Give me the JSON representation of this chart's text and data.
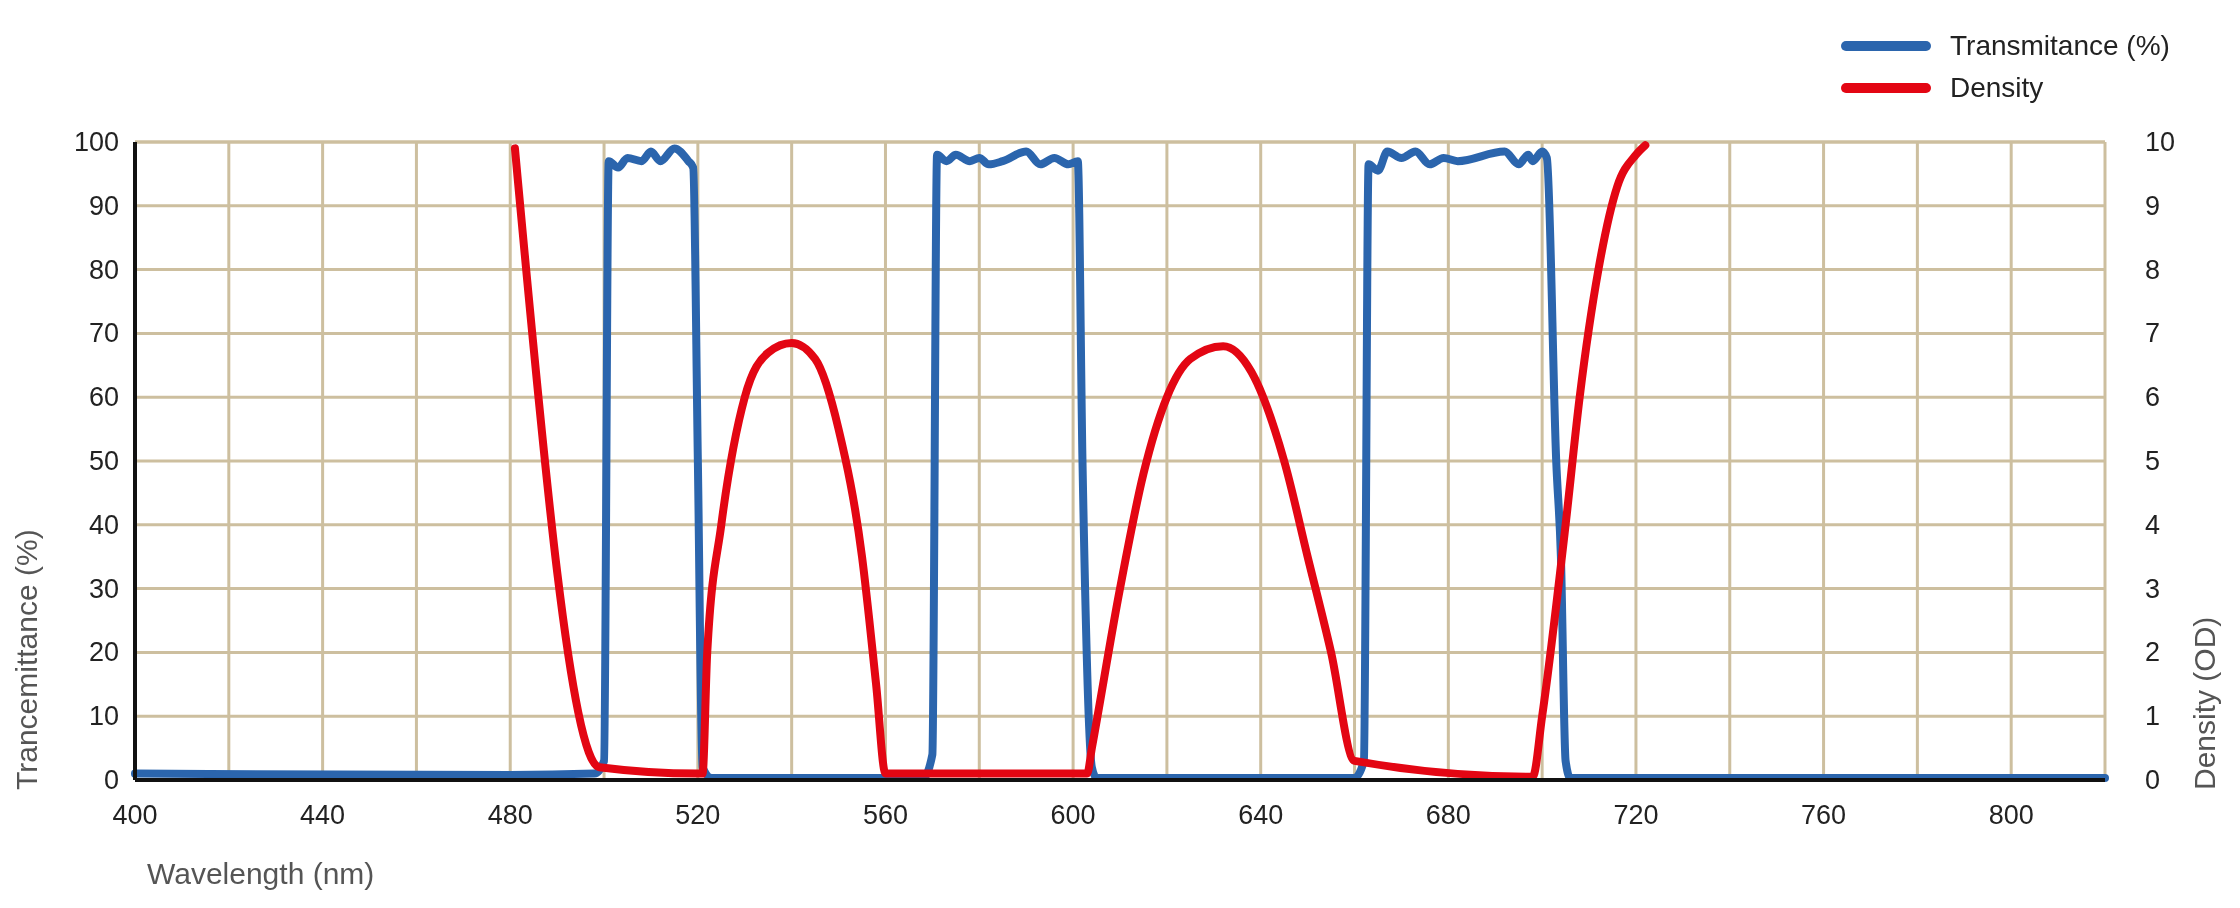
{
  "chart_data": {
    "type": "line",
    "xlabel": "Wavelength (nm)",
    "ylabel": "Trancemittance (%)",
    "y2label": "Density (OD)",
    "xlim": [
      400,
      820
    ],
    "xticks": [
      400,
      {
        "value": 420,
        "label": null
      },
      440,
      {
        "value": 460,
        "label": null
      },
      480,
      {
        "value": 500,
        "label": null
      },
      520,
      {
        "value": 540,
        "label": null
      },
      560,
      {
        "value": 580,
        "label": null
      },
      600,
      {
        "value": 620,
        "label": null
      },
      640,
      {
        "value": 660,
        "label": null
      },
      680,
      {
        "value": 700,
        "label": null
      },
      720,
      {
        "value": 740,
        "label": null
      },
      760,
      {
        "value": 780,
        "label": null
      },
      800
    ],
    "ylim": [
      0,
      100
    ],
    "yticks": [
      0,
      10,
      20,
      30,
      40,
      50,
      60,
      70,
      80,
      90,
      100
    ],
    "y2lim": [
      0,
      10
    ],
    "y2ticks": [
      0,
      1,
      2,
      3,
      4,
      5,
      6,
      7,
      8,
      9,
      10
    ],
    "grid": true,
    "legend": "top right",
    "marker": "none",
    "line_style": "solid",
    "series": [
      {
        "name": "Transmitance (%)",
        "color": "#2b65ad",
        "x": [
          400,
          480,
          498,
          500,
          501,
          503,
          505,
          508,
          510,
          512,
          515,
          518,
          519,
          520,
          521,
          523,
          560,
          568,
          570,
          571,
          573,
          575,
          578,
          580,
          582,
          585,
          590,
          593,
          596,
          599,
          601,
          602,
          604,
          605,
          660,
          662,
          663,
          665,
          667,
          670,
          673,
          676,
          679,
          682,
          692,
          695,
          697,
          698,
          700,
          701,
          703,
          704,
          705,
          706,
          820
        ],
        "values": [
          1,
          0.8,
          1,
          3,
          97,
          96,
          97.5,
          97,
          98.5,
          97,
          99,
          97,
          96,
          50,
          2,
          0.3,
          0.3,
          0.3,
          4,
          98,
          97,
          98,
          97,
          97.5,
          96.5,
          97,
          98.5,
          96.5,
          97.5,
          96.5,
          97,
          50,
          2,
          0.3,
          0.3,
          3,
          96.5,
          95.5,
          98.5,
          97.5,
          98.5,
          96.5,
          97.5,
          97,
          98.5,
          96.5,
          98,
          97,
          98.5,
          97.5,
          50,
          35,
          3,
          0.3,
          0.3
        ]
      },
      {
        "name": "Density",
        "color": "#e30613",
        "axis": "y2",
        "x": [
          481,
          499,
          520,
          521,
          522,
          525,
          530,
          535,
          540,
          545,
          550,
          555,
          558,
          560,
          603,
          604,
          610,
          615,
          620,
          625,
          632,
          638,
          645,
          650,
          655,
          660,
          698,
          700,
          705,
          708,
          712,
          716,
          720,
          722
        ],
        "values": [
          9.9,
          0.2,
          0.1,
          0.1,
          2,
          4,
          6,
          6.7,
          6.85,
          6.6,
          5.5,
          3.5,
          1.5,
          0.1,
          0.1,
          0.5,
          3,
          4.8,
          6,
          6.6,
          6.8,
          6.4,
          5,
          3.5,
          2,
          0.3,
          0.05,
          1,
          4,
          6,
          8,
          9.3,
          9.8,
          9.95
        ]
      }
    ]
  }
}
